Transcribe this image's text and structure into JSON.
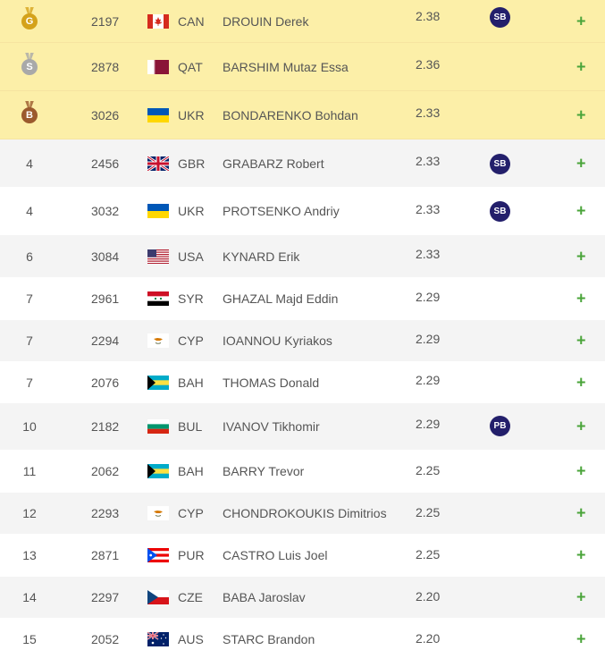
{
  "colors": {
    "medal_row": "#fcefa8",
    "badge": "#231f6b",
    "expand": "#4aa43a"
  },
  "rows": [
    {
      "rank": "G",
      "medal": "gold",
      "bib": "2197",
      "flag": "canada-flag",
      "country": "CAN",
      "name": "DROUIN Derek",
      "mark": "2.38",
      "badge": "SB"
    },
    {
      "rank": "S",
      "medal": "silver",
      "bib": "2878",
      "flag": "qatar-flag",
      "country": "QAT",
      "name": "BARSHIM Mutaz Essa",
      "mark": "2.36",
      "badge": ""
    },
    {
      "rank": "B",
      "medal": "bronze",
      "bib": "3026",
      "flag": "ukraine-flag",
      "country": "UKR",
      "name": "BONDARENKO Bohdan",
      "mark": "2.33",
      "badge": ""
    },
    {
      "rank": "4",
      "medal": "",
      "bib": "2456",
      "flag": "uk-flag",
      "country": "GBR",
      "name": "GRABARZ Robert",
      "mark": "2.33",
      "badge": "SB"
    },
    {
      "rank": "4",
      "medal": "",
      "bib": "3032",
      "flag": "ukraine-flag",
      "country": "UKR",
      "name": "PROTSENKO Andriy",
      "mark": "2.33",
      "badge": "SB"
    },
    {
      "rank": "6",
      "medal": "",
      "bib": "3084",
      "flag": "usa-flag",
      "country": "USA",
      "name": "KYNARD Erik",
      "mark": "2.33",
      "badge": ""
    },
    {
      "rank": "7",
      "medal": "",
      "bib": "2961",
      "flag": "syria-flag",
      "country": "SYR",
      "name": "GHAZAL Majd Eddin",
      "mark": "2.29",
      "badge": ""
    },
    {
      "rank": "7",
      "medal": "",
      "bib": "2294",
      "flag": "cyprus-flag",
      "country": "CYP",
      "name": "IOANNOU Kyriakos",
      "mark": "2.29",
      "badge": ""
    },
    {
      "rank": "7",
      "medal": "",
      "bib": "2076",
      "flag": "bahamas-flag",
      "country": "BAH",
      "name": "THOMAS Donald",
      "mark": "2.29",
      "badge": ""
    },
    {
      "rank": "10",
      "medal": "",
      "bib": "2182",
      "flag": "bulgaria-flag",
      "country": "BUL",
      "name": "IVANOV Tikhomir",
      "mark": "2.29",
      "badge": "PB"
    },
    {
      "rank": "11",
      "medal": "",
      "bib": "2062",
      "flag": "bahamas-flag",
      "country": "BAH",
      "name": "BARRY Trevor",
      "mark": "2.25",
      "badge": ""
    },
    {
      "rank": "12",
      "medal": "",
      "bib": "2293",
      "flag": "cyprus-flag",
      "country": "CYP",
      "name": "CHONDROKOUKIS Dimitrios",
      "mark": "2.25",
      "badge": ""
    },
    {
      "rank": "13",
      "medal": "",
      "bib": "2871",
      "flag": "puerto-rico-flag",
      "country": "PUR",
      "name": "CASTRO Luis Joel",
      "mark": "2.25",
      "badge": ""
    },
    {
      "rank": "14",
      "medal": "",
      "bib": "2297",
      "flag": "czech-flag",
      "country": "CZE",
      "name": "BABA Jaroslav",
      "mark": "2.20",
      "badge": ""
    },
    {
      "rank": "15",
      "medal": "",
      "bib": "2052",
      "flag": "australia-flag",
      "country": "AUS",
      "name": "STARC Brandon",
      "mark": "2.20",
      "badge": ""
    }
  ],
  "expand_symbol": "+"
}
